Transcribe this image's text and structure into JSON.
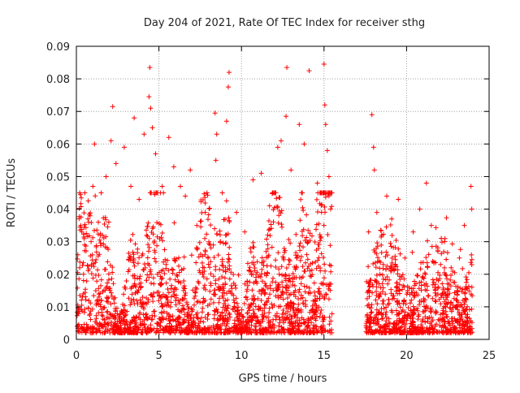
{
  "chart_data": {
    "type": "scatter",
    "title": "Day 204 of 2021, Rate Of TEC Index for receiver sthg",
    "xlabel": "GPS time / hours",
    "ylabel": "ROTI / TECUs",
    "xlim": [
      0,
      25
    ],
    "ylim": [
      0,
      0.09
    ],
    "x_ticks": [
      0,
      5,
      10,
      15,
      20,
      25
    ],
    "x_tick_labels": [
      "0",
      "5",
      "10",
      "15",
      "20",
      "25"
    ],
    "y_ticks": [
      0,
      0.01,
      0.02,
      0.03,
      0.04,
      0.05,
      0.06,
      0.07,
      0.08,
      0.09
    ],
    "y_tick_labels": [
      "0",
      "0.01",
      "0.02",
      "0.03",
      "0.04",
      "0.05",
      "0.06",
      "0.07",
      "0.08",
      "0.09"
    ],
    "grid": true,
    "marker": "+",
    "color": "#ff0000",
    "data_gaps_hours": [
      [
        15.5,
        17.5
      ]
    ],
    "series": [
      {
        "points": [
          [
            0.2,
            0.022
          ],
          [
            0.5,
            0.029
          ],
          [
            0.7,
            0.037
          ],
          [
            1.0,
            0.047
          ],
          [
            1.1,
            0.06
          ],
          [
            1.5,
            0.045
          ],
          [
            1.8,
            0.05
          ],
          [
            2.1,
            0.061
          ],
          [
            2.2,
            0.0715
          ],
          [
            2.4,
            0.054
          ],
          [
            2.9,
            0.059
          ],
          [
            3.3,
            0.047
          ],
          [
            3.5,
            0.068
          ],
          [
            3.8,
            0.043
          ],
          [
            4.1,
            0.063
          ],
          [
            4.4,
            0.0745
          ],
          [
            4.45,
            0.0835
          ],
          [
            4.5,
            0.071
          ],
          [
            4.6,
            0.065
          ],
          [
            4.8,
            0.057
          ],
          [
            5.2,
            0.047
          ],
          [
            5.6,
            0.062
          ],
          [
            5.9,
            0.053
          ],
          [
            6.3,
            0.047
          ],
          [
            6.6,
            0.044
          ],
          [
            6.9,
            0.052
          ],
          [
            7.3,
            0.035
          ],
          [
            7.8,
            0.039
          ],
          [
            8.4,
            0.0695
          ],
          [
            8.45,
            0.055
          ],
          [
            8.5,
            0.063
          ],
          [
            9.1,
            0.067
          ],
          [
            9.2,
            0.0775
          ],
          [
            9.25,
            0.082
          ],
          [
            9.7,
            0.039
          ],
          [
            10.2,
            0.033
          ],
          [
            10.7,
            0.049
          ],
          [
            11.2,
            0.051
          ],
          [
            11.7,
            0.041
          ],
          [
            12.2,
            0.059
          ],
          [
            12.4,
            0.061
          ],
          [
            12.7,
            0.0685
          ],
          [
            12.75,
            0.0835
          ],
          [
            13.0,
            0.052
          ],
          [
            13.5,
            0.066
          ],
          [
            13.8,
            0.06
          ],
          [
            14.1,
            0.0825
          ],
          [
            14.6,
            0.048
          ],
          [
            15.0,
            0.0845
          ],
          [
            15.05,
            0.072
          ],
          [
            15.1,
            0.066
          ],
          [
            15.2,
            0.058
          ],
          [
            15.3,
            0.05
          ],
          [
            15.4,
            0.04
          ],
          [
            17.7,
            0.033
          ],
          [
            17.9,
            0.069
          ],
          [
            18.0,
            0.059
          ],
          [
            18.05,
            0.052
          ],
          [
            18.2,
            0.039
          ],
          [
            18.5,
            0.032
          ],
          [
            18.8,
            0.044
          ],
          [
            19.1,
            0.037
          ],
          [
            19.5,
            0.043
          ],
          [
            19.9,
            0.025
          ],
          [
            20.4,
            0.033
          ],
          [
            20.8,
            0.04
          ],
          [
            21.2,
            0.048
          ],
          [
            21.5,
            0.035
          ],
          [
            21.9,
            0.027
          ],
          [
            22.3,
            0.03
          ],
          [
            22.7,
            0.022
          ],
          [
            23.2,
            0.025
          ],
          [
            23.5,
            0.035
          ],
          [
            23.9,
            0.047
          ],
          [
            23.95,
            0.04
          ]
        ]
      }
    ]
  }
}
